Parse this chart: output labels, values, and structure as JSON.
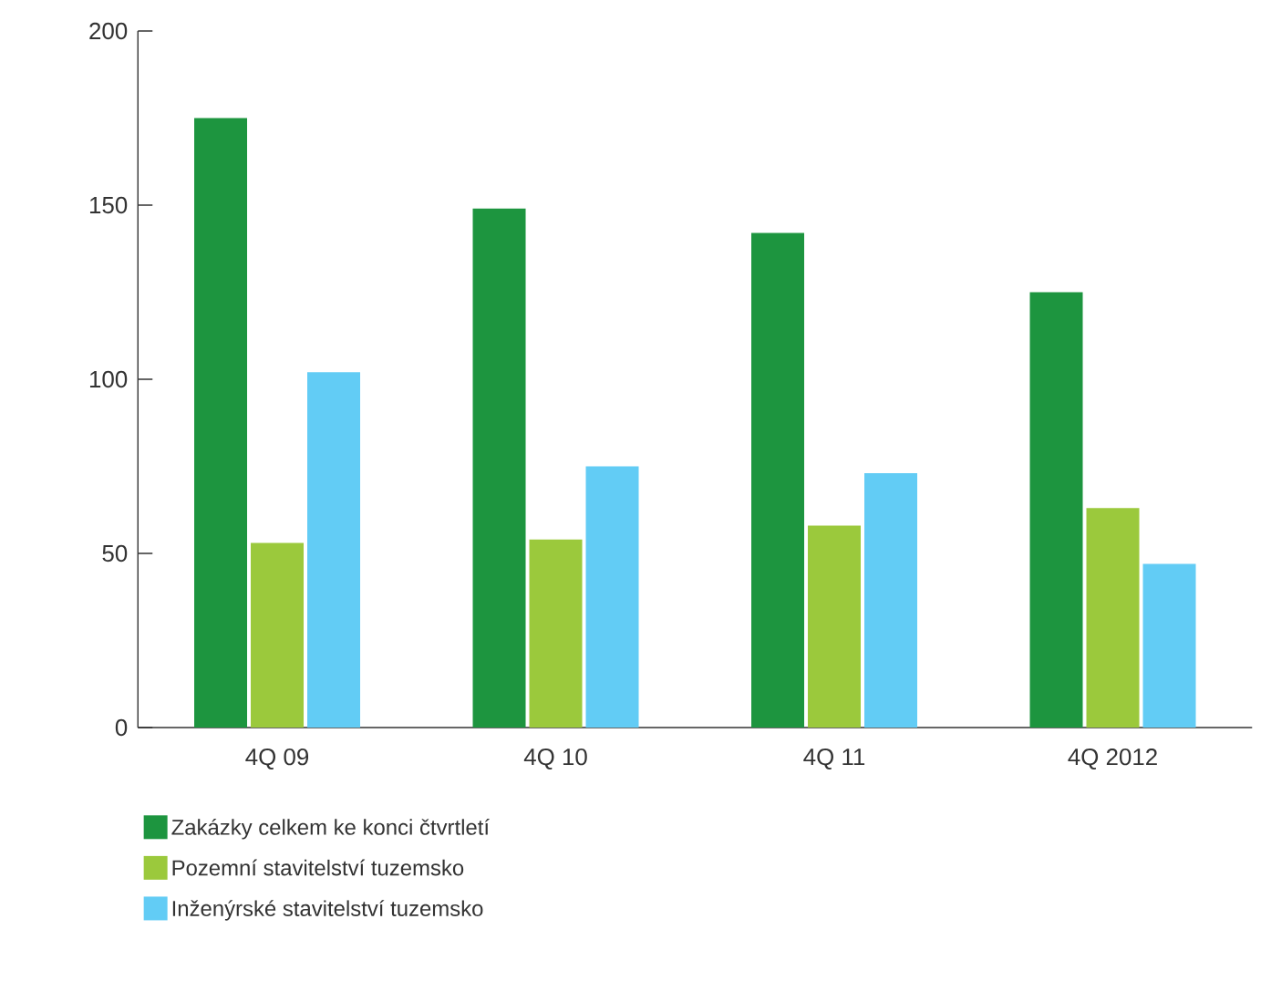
{
  "chart_data": {
    "type": "bar",
    "categories": [
      "4Q 09",
      "4Q 10",
      "4Q 11",
      "4Q 2012"
    ],
    "series": [
      {
        "name": "Zakázky celkem ke konci čtvrtletí",
        "color": "#1d953f",
        "values": [
          175,
          149,
          142,
          125
        ]
      },
      {
        "name": "Pozemní stavitelství tuzemsko",
        "color": "#9bc93c",
        "values": [
          53,
          54,
          58,
          63
        ]
      },
      {
        "name": "Inženýrské stavitelství tuzemsko",
        "color": "#62ccf5",
        "values": [
          102,
          75,
          73,
          47
        ]
      }
    ],
    "ylim": [
      0,
      200
    ],
    "yticks": [
      0,
      50,
      100,
      150,
      200
    ],
    "grid": false,
    "legend": "bottom left"
  }
}
